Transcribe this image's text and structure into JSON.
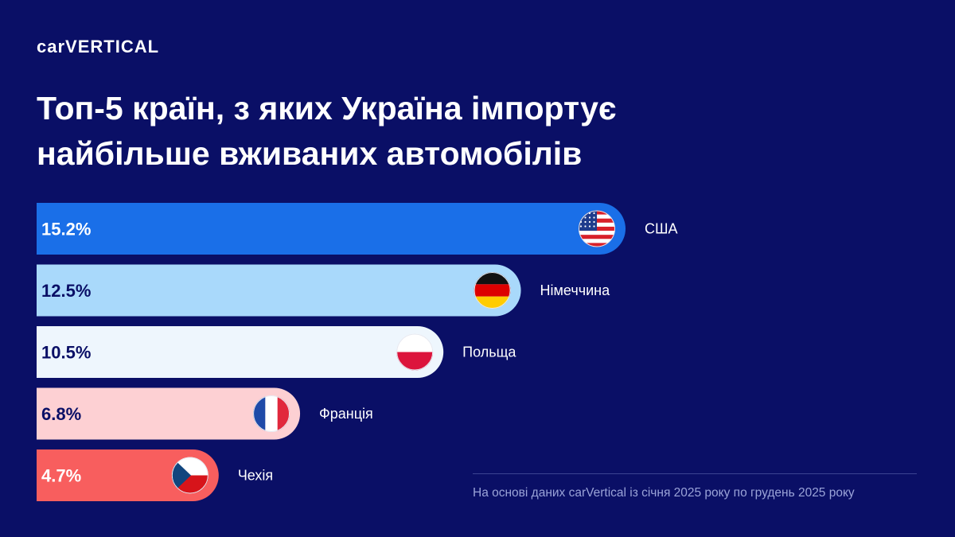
{
  "brand": {
    "logo_prefix": "car",
    "logo_v": "V",
    "logo_suffix": "ERTICAL"
  },
  "title": "Топ-5 країн, з яких Україна імпортує найбільше вживаних автомобілів",
  "source_note": "На основі даних carVertical із січня 2025 року по грудень 2025 року",
  "chart_data": {
    "type": "bar",
    "orientation": "horizontal",
    "title": "Топ-5 країн, з яких Україна імпортує найбільше вживаних автомобілів",
    "categories": [
      "США",
      "Німеччина",
      "Польща",
      "Франція",
      "Чехія"
    ],
    "values": [
      15.2,
      12.5,
      10.5,
      6.8,
      4.7
    ],
    "value_labels": [
      "15.2%",
      "12.5%",
      "10.5%",
      "6.8%",
      "4.7%"
    ],
    "unit": "%",
    "flags": [
      "usa-flag-icon",
      "germany-flag-icon",
      "poland-flag-icon",
      "france-flag-icon",
      "czechia-flag-icon"
    ],
    "bar_colors": [
      "#1a6fe8",
      "#a9d9fb",
      "#eef6fd",
      "#fdd0d3",
      "#f85e5e"
    ],
    "value_label_colors": [
      "#ffffff",
      "#0a0f66",
      "#0a0f66",
      "#0a0f66",
      "#ffffff"
    ],
    "background": "#0a0f66",
    "xlabel": "",
    "ylabel": "",
    "grid": false,
    "legend": "none"
  }
}
